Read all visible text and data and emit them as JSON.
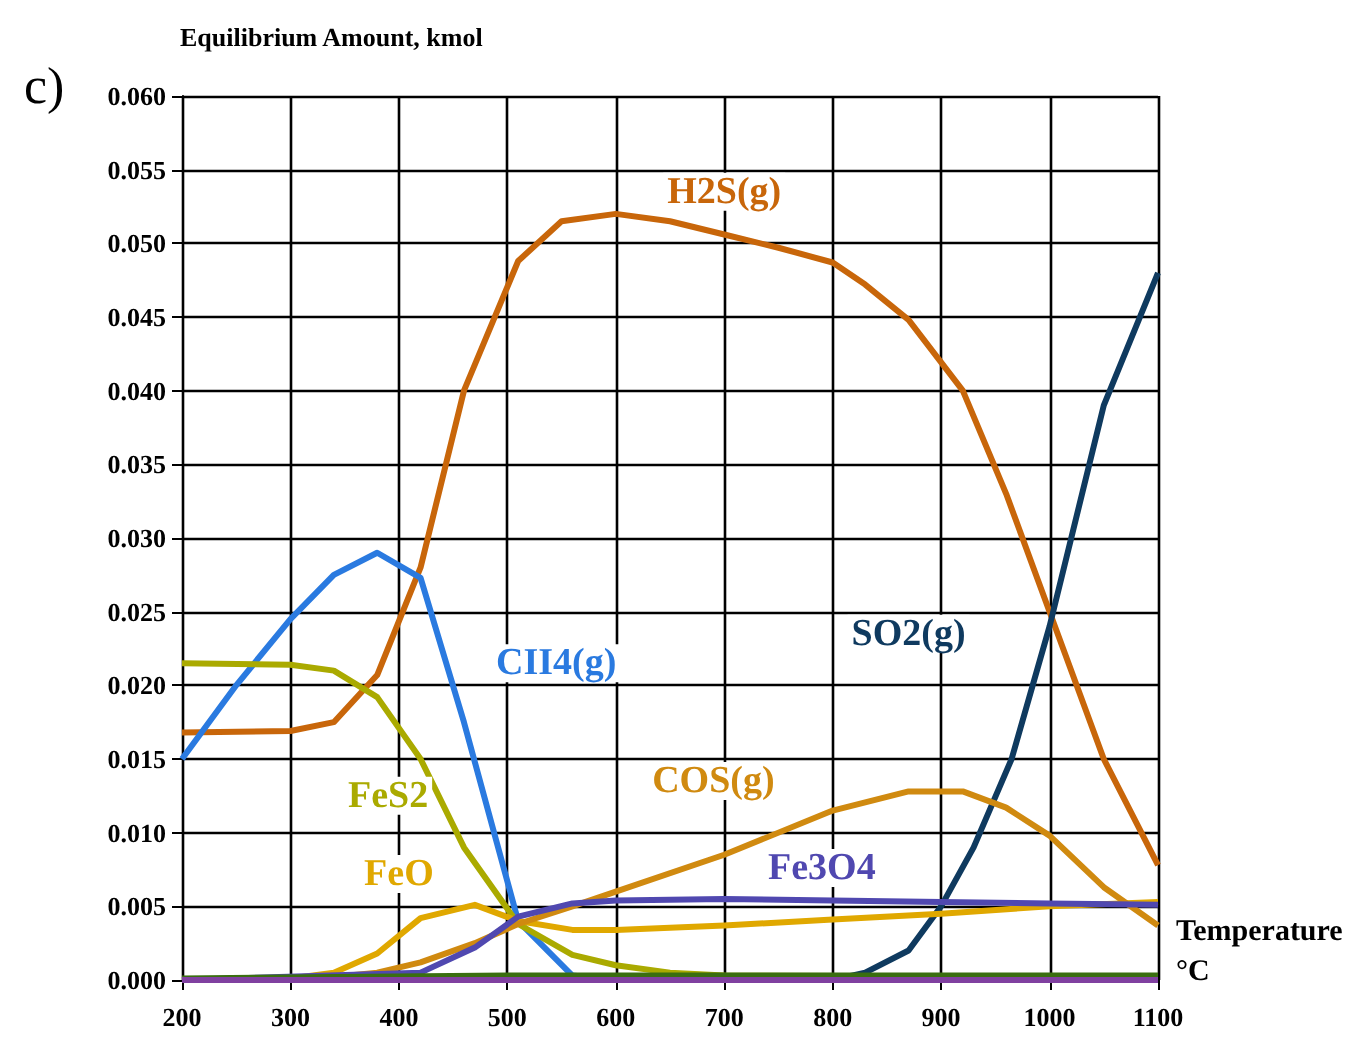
{
  "chart_data": {
    "type": "line",
    "ylabel": "Equilibrium Amount, kmol",
    "xlabel": "Temperature\n°C",
    "annotations": [
      "c)"
    ],
    "grid": true,
    "legend": false,
    "xlim": [
      200,
      1100
    ],
    "xticks": [
      200,
      300,
      400,
      500,
      600,
      700,
      800,
      900,
      1000,
      1100
    ],
    "ylim": [
      0,
      0.06
    ],
    "yticks": [
      {
        "value": 0,
        "label": "0.000"
      },
      {
        "value": 0.005,
        "label": "0.005"
      },
      {
        "value": 0.01,
        "label": "0.010"
      },
      {
        "value": 0.015,
        "label": "0.015"
      },
      {
        "value": 0.02,
        "label": "0.020"
      },
      {
        "value": 0.025,
        "label": "0.025"
      },
      {
        "value": 0.03,
        "label": "0.030"
      },
      {
        "value": 0.035,
        "label": "0.035"
      },
      {
        "value": 0.04,
        "label": "0.040"
      },
      {
        "value": 0.045,
        "label": "0.045"
      },
      {
        "value": 0.05,
        "label": "0.050"
      },
      {
        "value": 0.055,
        "label": "0.055"
      },
      {
        "value": 0.06,
        "label": "0.060"
      }
    ],
    "series": [
      {
        "name": "H2S(g)",
        "color": "#c8660a",
        "x": [
          200,
          300,
          340,
          380,
          420,
          460,
          510,
          550,
          600,
          650,
          700,
          750,
          800,
          830,
          870,
          920,
          960,
          1000,
          1050,
          1100
        ],
        "values": [
          0.0168,
          0.0169,
          0.0175,
          0.0207,
          0.028,
          0.04,
          0.0488,
          0.0515,
          0.052,
          0.0515,
          0.0506,
          0.0497,
          0.0487,
          0.0472,
          0.0448,
          0.04,
          0.033,
          0.025,
          0.015,
          0.0078
        ]
      },
      {
        "name": "SO2(g)",
        "color": "#0f3a5f",
        "x": [
          200,
          500,
          800,
          830,
          870,
          900,
          930,
          965,
          1000,
          1050,
          1100
        ],
        "values": [
          0,
          0,
          0,
          0.0005,
          0.002,
          0.005,
          0.009,
          0.015,
          0.024,
          0.039,
          0.048
        ]
      },
      {
        "name": "CII4(g)",
        "color": "#2a7ae0",
        "x": [
          200,
          250,
          300,
          340,
          380,
          420,
          460,
          510,
          560,
          600,
          1100
        ],
        "values": [
          0.015,
          0.02,
          0.0245,
          0.0275,
          0.029,
          0.0273,
          0.0175,
          0.004,
          0.0003,
          0,
          0
        ]
      },
      {
        "name": "FeS2",
        "color": "#aaaa00",
        "x": [
          200,
          300,
          340,
          380,
          420,
          460,
          510,
          560,
          600,
          650,
          700,
          1100
        ],
        "values": [
          0.0215,
          0.0214,
          0.021,
          0.0192,
          0.015,
          0.009,
          0.0038,
          0.0017,
          0.001,
          0.0005,
          0.0003,
          0.0002
        ]
      },
      {
        "name": "FeO",
        "color": "#e0a800",
        "x": [
          200,
          300,
          340,
          380,
          420,
          470,
          510,
          560,
          600,
          700,
          800,
          900,
          1000,
          1100
        ],
        "values": [
          0,
          0.0001,
          0.0005,
          0.0018,
          0.0042,
          0.0051,
          0.004,
          0.0034,
          0.0034,
          0.0037,
          0.0041,
          0.0045,
          0.005,
          0.0053
        ]
      },
      {
        "name": "COS(g)",
        "color": "#d08a10",
        "x": [
          200,
          340,
          380,
          420,
          470,
          510,
          560,
          600,
          700,
          800,
          870,
          920,
          960,
          1000,
          1050,
          1100
        ],
        "values": [
          0,
          0.0002,
          0.0005,
          0.0012,
          0.0025,
          0.0038,
          0.005,
          0.006,
          0.0085,
          0.0115,
          0.0128,
          0.0128,
          0.0117,
          0.0098,
          0.0063,
          0.0037
        ]
      },
      {
        "name": "Fe3O4",
        "color": "#5048b0",
        "x": [
          200,
          420,
          470,
          510,
          560,
          600,
          700,
          800,
          900,
          1000,
          1100
        ],
        "values": [
          0,
          0.0005,
          0.0022,
          0.0043,
          0.0052,
          0.0054,
          0.0055,
          0.0054,
          0.0053,
          0.0052,
          0.0051
        ]
      },
      {
        "color": "#3a6e10",
        "x": [
          200,
          500,
          1100
        ],
        "values": [
          0.0001,
          0.0003,
          0.0003
        ]
      },
      {
        "color": "#8040a0",
        "x": [
          200,
          1100
        ],
        "values": [
          0,
          0
        ]
      }
    ]
  }
}
